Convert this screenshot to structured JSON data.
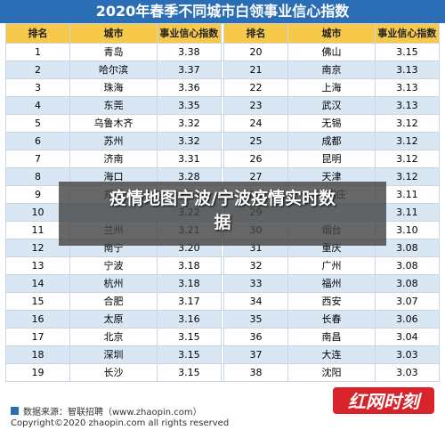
{
  "title": "2020年春季不同城市白领事业信心指数",
  "headers": [
    "排名",
    "城市",
    "事业信心指数",
    "排名",
    "城市",
    "事业信心指数"
  ],
  "rows": [
    [
      [
        "1",
        "青岛",
        "3.38"
      ],
      [
        "20",
        "佛山",
        "3.15"
      ]
    ],
    [
      [
        "2",
        "哈尔滨",
        "3.37"
      ],
      [
        "21",
        "南京",
        "3.13"
      ]
    ],
    [
      [
        "3",
        "珠海",
        "3.36"
      ],
      [
        "22",
        "上海",
        "3.13"
      ]
    ],
    [
      [
        "4",
        "东莞",
        "3.35"
      ],
      [
        "23",
        "武汉",
        "3.13"
      ]
    ],
    [
      [
        "5",
        "乌鲁木齐",
        "3.32"
      ],
      [
        "24",
        "无锡",
        "3.12"
      ]
    ],
    [
      [
        "6",
        "苏州",
        "3.32"
      ],
      [
        "25",
        "成都",
        "3.12"
      ]
    ],
    [
      [
        "7",
        "济南",
        "3.31"
      ],
      [
        "26",
        "昆明",
        "3.12"
      ]
    ],
    [
      [
        "8",
        "海口",
        "3.28"
      ],
      [
        "27",
        "天津",
        "3.12"
      ]
    ],
    [
      [
        "9",
        "郑州",
        "3.24"
      ],
      [
        "28",
        "石家庄",
        "3.11"
      ]
    ],
    [
      [
        "10",
        "",
        "3.22"
      ],
      [
        "29",
        "",
        "3.11"
      ]
    ],
    [
      [
        "11",
        "兰州",
        "3.21"
      ],
      [
        "30",
        "烟台",
        "3.10"
      ]
    ],
    [
      [
        "12",
        "南宁",
        "3.20"
      ],
      [
        "31",
        "重庆",
        "3.08"
      ]
    ],
    [
      [
        "13",
        "宁波",
        "3.18"
      ],
      [
        "32",
        "广州",
        "3.08"
      ]
    ],
    [
      [
        "14",
        "杭州",
        "3.18"
      ],
      [
        "33",
        "福州",
        "3.08"
      ]
    ],
    [
      [
        "15",
        "合肥",
        "3.17"
      ],
      [
        "34",
        "西安",
        "3.07"
      ]
    ],
    [
      [
        "16",
        "太原",
        "3.16"
      ],
      [
        "35",
        "长春",
        "3.06"
      ]
    ],
    [
      [
        "17",
        "北京",
        "3.15"
      ],
      [
        "36",
        "南昌",
        "3.04"
      ]
    ],
    [
      [
        "18",
        "深圳",
        "3.15"
      ],
      [
        "37",
        "大连",
        "3.03"
      ]
    ],
    [
      [
        "19",
        "长沙",
        "3.15"
      ],
      [
        "38",
        "沈阳",
        "3.03"
      ]
    ]
  ],
  "overlay": {
    "line1": "疫情地图宁波/宁波疫情实时数",
    "line2": "据"
  },
  "footer": {
    "source": "数据来源：智联招聘（www.zhaopin.com）",
    "copyright": "Copyright©2020 zhaopin.com all rights reserved"
  },
  "watermark": {
    "text": "红网时刻",
    "color": "#d8232a"
  },
  "colors": {
    "title_bg": "#2b6eb5",
    "header_bg": "#f7c94b",
    "stripe": "#d9e7f5"
  }
}
